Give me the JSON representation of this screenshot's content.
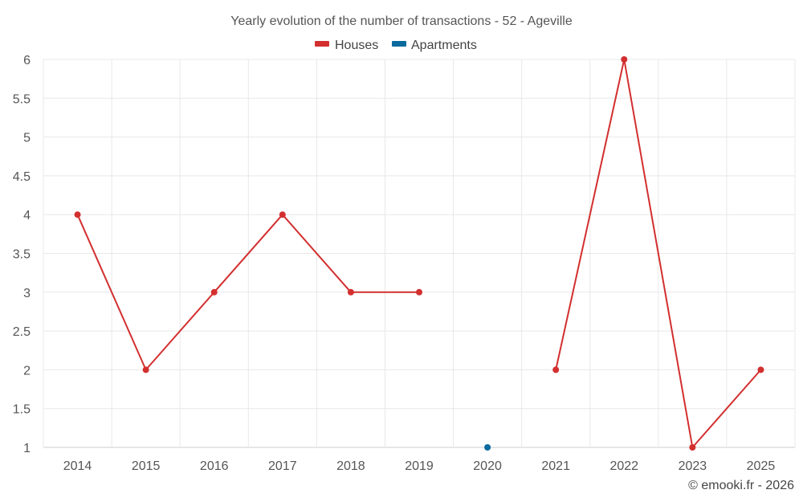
{
  "chart_data": {
    "type": "line",
    "title": "Yearly evolution of the number of transactions - 52 - Ageville",
    "categories": [
      "2014",
      "2015",
      "2016",
      "2017",
      "2018",
      "2019",
      "2020",
      "2021",
      "2022",
      "2023",
      "2025"
    ],
    "series": [
      {
        "name": "Houses",
        "color": "#d32f2f",
        "values": [
          4,
          2,
          3,
          4,
          3,
          3,
          null,
          2,
          6,
          1,
          2
        ]
      },
      {
        "name": "Apartments",
        "color": "#0a6a9e",
        "values": [
          null,
          null,
          null,
          null,
          null,
          null,
          1,
          null,
          null,
          null,
          null
        ]
      }
    ],
    "yticks": [
      "1",
      "1.5",
      "2",
      "2.5",
      "3",
      "3.5",
      "4",
      "4.5",
      "5",
      "5.5",
      "6"
    ],
    "ylim": [
      1,
      6
    ],
    "grid": true,
    "legend_position": "top-center",
    "credit": "© emooki.fr - 2026"
  }
}
